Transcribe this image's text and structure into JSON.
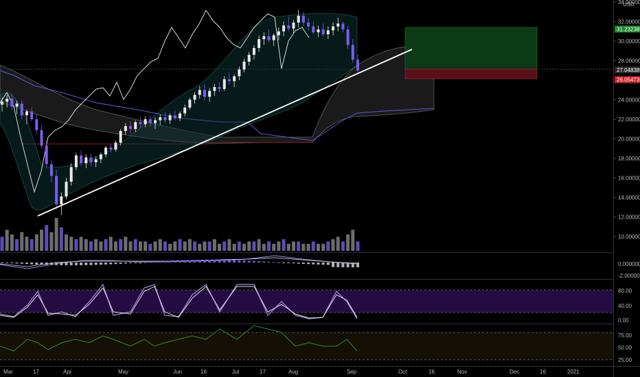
{
  "chart_data": {
    "type": "candlestick",
    "currency": "USD",
    "xaxis_labels": [
      "Mar",
      "17",
      "Apr",
      "May",
      "Jun",
      "16",
      "Jul",
      "17",
      "Aug",
      "Sep",
      "Oct",
      "16",
      "Nov",
      "Dec",
      "16",
      "2021"
    ],
    "price_axis": {
      "ylim": [
        9,
        34
      ],
      "ticks": [
        "34.000000",
        "32.000000",
        "30.000000",
        "28.000000",
        "26.000000",
        "24.000000",
        "22.000000",
        "20.000000",
        "18.000000",
        "16.000000",
        "14.000000",
        "12.000000",
        "10.000000"
      ],
      "tick_values": [
        34,
        32,
        30,
        28,
        26,
        24,
        22,
        20,
        18,
        16,
        14,
        12,
        10
      ]
    },
    "price_badges": [
      {
        "label": "31.232389",
        "value": 31.232389,
        "color": "#1a8a2a"
      },
      {
        "label": "27.048389",
        "value": 27.048389,
        "color": "#2a2a2a"
      },
      {
        "label": "26.054739",
        "value": 26.054739,
        "color": "#cc1f2a"
      }
    ],
    "macd_axis": {
      "ticks": [
        "0.000000",
        "-2.000000"
      ],
      "tick_values": [
        0,
        -2
      ]
    },
    "stoch_axis": {
      "ticks": [
        "80.00",
        "40.00",
        "0.00"
      ],
      "tick_values": [
        80,
        40,
        0
      ]
    },
    "rsi_axis": {
      "ticks": [
        "75.00",
        "50.00",
        "25.00"
      ],
      "tick_values": [
        75,
        50,
        25
      ]
    },
    "candles": [
      [
        0,
        23.5,
        24.2,
        22.8,
        23.8
      ],
      [
        1,
        23.8,
        24.5,
        23.2,
        24.1
      ],
      [
        2,
        24.1,
        24.6,
        23.0,
        23.3
      ],
      [
        3,
        23.3,
        23.9,
        22.5,
        23.6
      ],
      [
        4,
        23.6,
        24.0,
        22.0,
        22.4
      ],
      [
        5,
        22.4,
        23.0,
        21.5,
        22.8
      ],
      [
        6,
        22.8,
        23.2,
        21.8,
        22.0
      ],
      [
        7,
        22.0,
        22.5,
        20.5,
        20.9
      ],
      [
        8,
        20.9,
        21.5,
        19.0,
        19.3
      ],
      [
        9,
        19.3,
        19.8,
        17.0,
        17.4
      ],
      [
        10,
        17.4,
        17.8,
        15.5,
        16.2
      ],
      [
        11,
        16.2,
        16.8,
        12.8,
        13.3
      ],
      [
        12,
        13.3,
        14.5,
        12.2,
        14.1
      ],
      [
        13,
        14.1,
        16.0,
        13.8,
        15.6
      ],
      [
        14,
        15.6,
        17.5,
        15.2,
        17.1
      ],
      [
        15,
        17.1,
        18.6,
        16.8,
        18.3
      ],
      [
        16,
        18.3,
        18.8,
        17.2,
        17.5
      ],
      [
        17,
        17.5,
        18.4,
        17.0,
        18.1
      ],
      [
        18,
        18.1,
        18.5,
        17.2,
        17.6
      ],
      [
        19,
        17.6,
        18.2,
        17.1,
        17.9
      ],
      [
        20,
        17.9,
        18.6,
        17.5,
        18.4
      ],
      [
        21,
        18.4,
        19.3,
        18.1,
        19.1
      ],
      [
        22,
        19.1,
        19.5,
        18.6,
        18.9
      ],
      [
        23,
        18.9,
        19.8,
        18.7,
        19.6
      ],
      [
        24,
        19.6,
        21.0,
        19.3,
        20.8
      ],
      [
        25,
        20.8,
        21.6,
        20.4,
        21.3
      ],
      [
        26,
        21.3,
        21.8,
        20.6,
        21.0
      ],
      [
        27,
        21.0,
        21.9,
        20.7,
        21.7
      ],
      [
        28,
        21.7,
        22.2,
        21.1,
        21.5
      ],
      [
        29,
        21.5,
        22.3,
        21.2,
        22.0
      ],
      [
        30,
        22.0,
        22.4,
        21.3,
        21.6
      ],
      [
        31,
        21.6,
        22.2,
        21.0,
        21.9
      ],
      [
        32,
        21.9,
        22.5,
        21.4,
        22.2
      ],
      [
        33,
        22.2,
        22.7,
        21.6,
        21.9
      ],
      [
        34,
        21.9,
        22.6,
        21.5,
        22.4
      ],
      [
        35,
        22.4,
        22.9,
        21.9,
        22.1
      ],
      [
        36,
        22.1,
        22.8,
        21.8,
        22.6
      ],
      [
        37,
        22.6,
        23.5,
        22.3,
        23.2
      ],
      [
        38,
        23.2,
        24.2,
        23.0,
        24.0
      ],
      [
        39,
        24.0,
        24.8,
        23.6,
        24.5
      ],
      [
        40,
        24.5,
        25.4,
        24.1,
        25.0
      ],
      [
        41,
        25.0,
        25.6,
        23.9,
        24.3
      ],
      [
        42,
        24.3,
        25.2,
        23.8,
        24.9
      ],
      [
        43,
        24.9,
        25.6,
        24.4,
        25.3
      ],
      [
        44,
        25.3,
        25.8,
        24.8,
        25.1
      ],
      [
        45,
        25.1,
        26.4,
        24.9,
        26.1
      ],
      [
        46,
        26.1,
        26.8,
        25.6,
        25.9
      ],
      [
        47,
        25.9,
        26.6,
        25.3,
        26.4
      ],
      [
        48,
        26.4,
        27.4,
        26.0,
        27.1
      ],
      [
        49,
        27.1,
        28.2,
        26.8,
        27.9
      ],
      [
        50,
        27.9,
        28.9,
        27.5,
        28.6
      ],
      [
        51,
        28.6,
        29.6,
        28.1,
        29.3
      ],
      [
        52,
        29.3,
        30.6,
        28.9,
        30.2
      ],
      [
        53,
        30.2,
        30.9,
        29.6,
        30.5
      ],
      [
        54,
        30.5,
        31.2,
        29.8,
        30.1
      ],
      [
        55,
        30.1,
        30.8,
        29.5,
        30.6
      ],
      [
        56,
        30.6,
        31.4,
        30.1,
        31.0
      ],
      [
        57,
        31.0,
        32.0,
        30.5,
        31.6
      ],
      [
        58,
        31.6,
        32.5,
        31.0,
        31.3
      ],
      [
        59,
        31.3,
        32.2,
        30.8,
        31.9
      ],
      [
        60,
        31.9,
        33.2,
        31.4,
        32.6
      ],
      [
        61,
        32.6,
        33.0,
        31.6,
        31.9
      ],
      [
        62,
        31.9,
        32.4,
        31.1,
        31.5
      ],
      [
        63,
        31.5,
        32.0,
        30.7,
        30.9
      ],
      [
        64,
        30.9,
        31.6,
        30.4,
        31.2
      ],
      [
        65,
        31.2,
        31.8,
        30.5,
        30.7
      ],
      [
        66,
        30.7,
        31.5,
        30.2,
        31.1
      ],
      [
        67,
        31.1,
        31.9,
        30.6,
        31.5
      ],
      [
        68,
        31.5,
        32.4,
        31.0,
        31.8
      ],
      [
        69,
        31.8,
        32.0,
        30.9,
        31.2
      ],
      [
        70,
        31.2,
        31.6,
        29.2,
        29.6
      ],
      [
        71,
        29.6,
        30.2,
        27.8,
        28.1
      ],
      [
        72,
        28.1,
        28.6,
        26.8,
        27.0
      ]
    ],
    "volume": [
      6,
      9,
      7,
      5,
      8,
      6,
      5,
      7,
      9,
      11,
      8,
      14,
      10,
      7,
      6,
      5,
      6,
      5,
      4,
      5,
      4,
      5,
      6,
      4,
      5,
      6,
      4,
      5,
      4,
      4,
      3,
      4,
      5,
      4,
      3,
      4,
      5,
      4,
      5,
      4,
      3,
      4,
      4,
      5,
      3,
      4,
      5,
      3,
      4,
      3,
      4,
      4,
      5,
      3,
      4,
      3,
      4,
      5,
      3,
      4,
      4,
      3,
      3,
      4,
      3,
      3,
      4,
      5,
      6,
      4,
      7,
      9,
      4
    ],
    "trade_box": {
      "entry": 27.048389,
      "target": 31.232389,
      "stop": 26.054739
    },
    "trendline": {
      "from": [
        11.5,
        12.2
      ],
      "to": [
        106,
        29.0
      ]
    }
  },
  "axis_labels_header": {
    "currency": "USD"
  }
}
